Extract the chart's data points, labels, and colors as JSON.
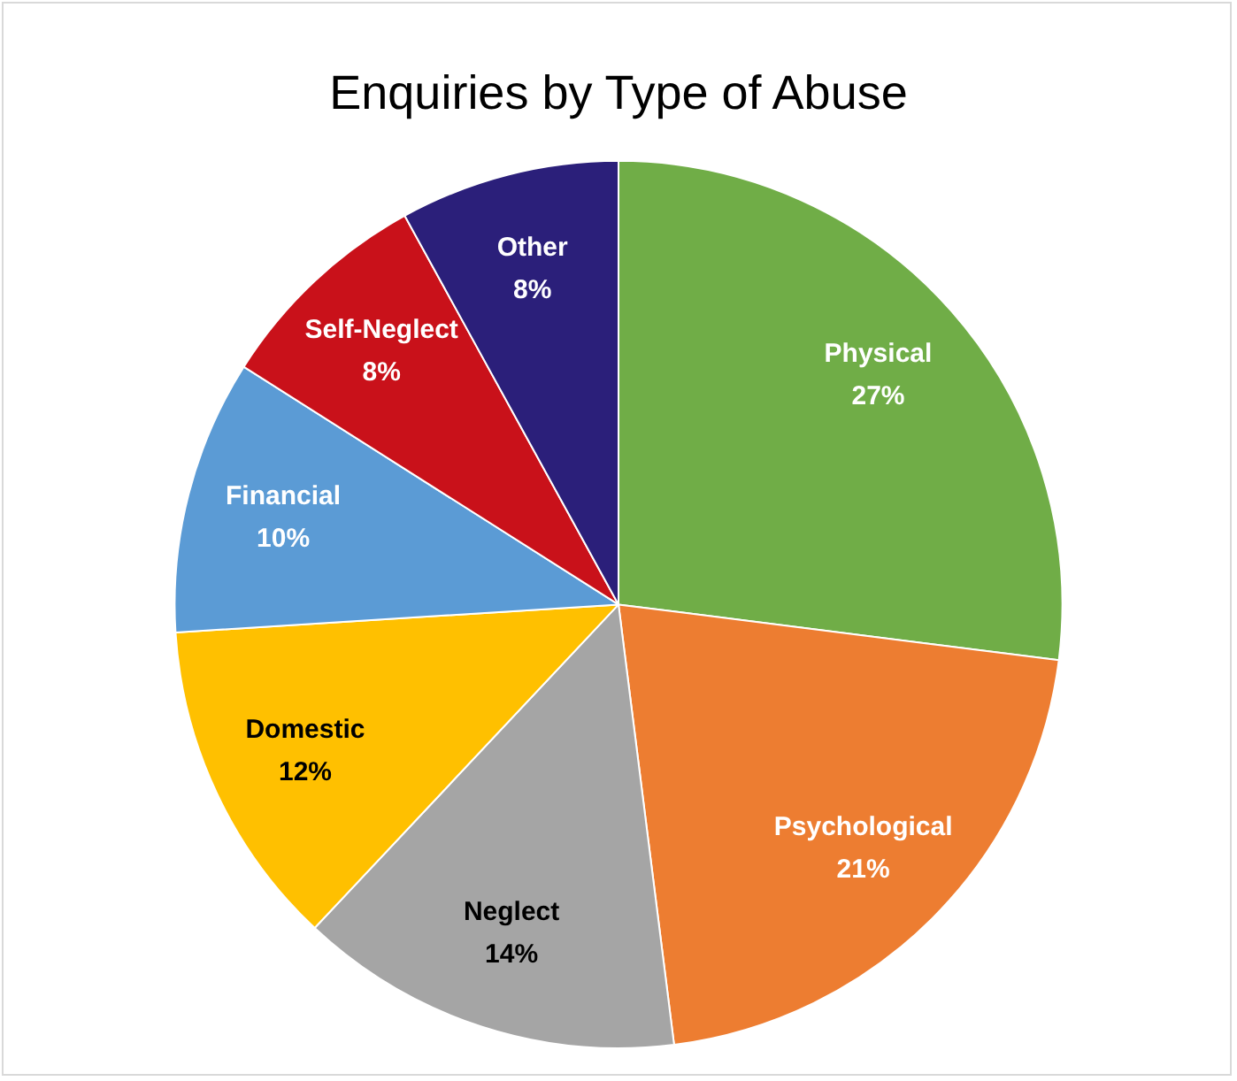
{
  "chart_data": {
    "type": "pie",
    "title": "Enquiries by Type of Abuse",
    "categories": [
      "Physical",
      "Psychological",
      "Neglect",
      "Domestic",
      "Financial",
      "Self-Neglect",
      "Other"
    ],
    "values": [
      27,
      21,
      14,
      12,
      10,
      8,
      8
    ],
    "colors": [
      "#70ad47",
      "#ed7d31",
      "#a5a5a5",
      "#ffc000",
      "#5b9bd5",
      "#c9111a",
      "#2b1f7a"
    ],
    "value_labels": [
      "27%",
      "21%",
      "14%",
      "12%",
      "10%",
      "8%",
      "8%"
    ]
  }
}
